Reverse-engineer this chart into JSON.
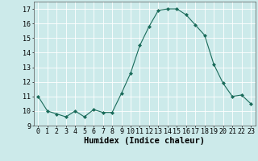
{
  "x": [
    0,
    1,
    2,
    3,
    4,
    5,
    6,
    7,
    8,
    9,
    10,
    11,
    12,
    13,
    14,
    15,
    16,
    17,
    18,
    19,
    20,
    21,
    22,
    23
  ],
  "y": [
    11.0,
    10.0,
    9.8,
    9.6,
    10.0,
    9.6,
    10.1,
    9.9,
    9.9,
    11.2,
    12.6,
    14.5,
    15.8,
    16.9,
    17.0,
    17.0,
    16.6,
    15.9,
    15.2,
    13.2,
    11.9,
    11.0,
    11.1,
    10.5
  ],
  "line_color": "#1a6b5a",
  "marker": "D",
  "marker_size": 2.0,
  "bg_color": "#cceaea",
  "grid_color": "#ffffff",
  "xlabel": "Humidex (Indice chaleur)",
  "xlim": [
    -0.5,
    23.5
  ],
  "ylim": [
    9.0,
    17.5
  ],
  "yticks": [
    9,
    10,
    11,
    12,
    13,
    14,
    15,
    16,
    17
  ],
  "xticks": [
    0,
    1,
    2,
    3,
    4,
    5,
    6,
    7,
    8,
    9,
    10,
    11,
    12,
    13,
    14,
    15,
    16,
    17,
    18,
    19,
    20,
    21,
    22,
    23
  ],
  "tick_label_fontsize": 6,
  "xlabel_fontsize": 7.5
}
